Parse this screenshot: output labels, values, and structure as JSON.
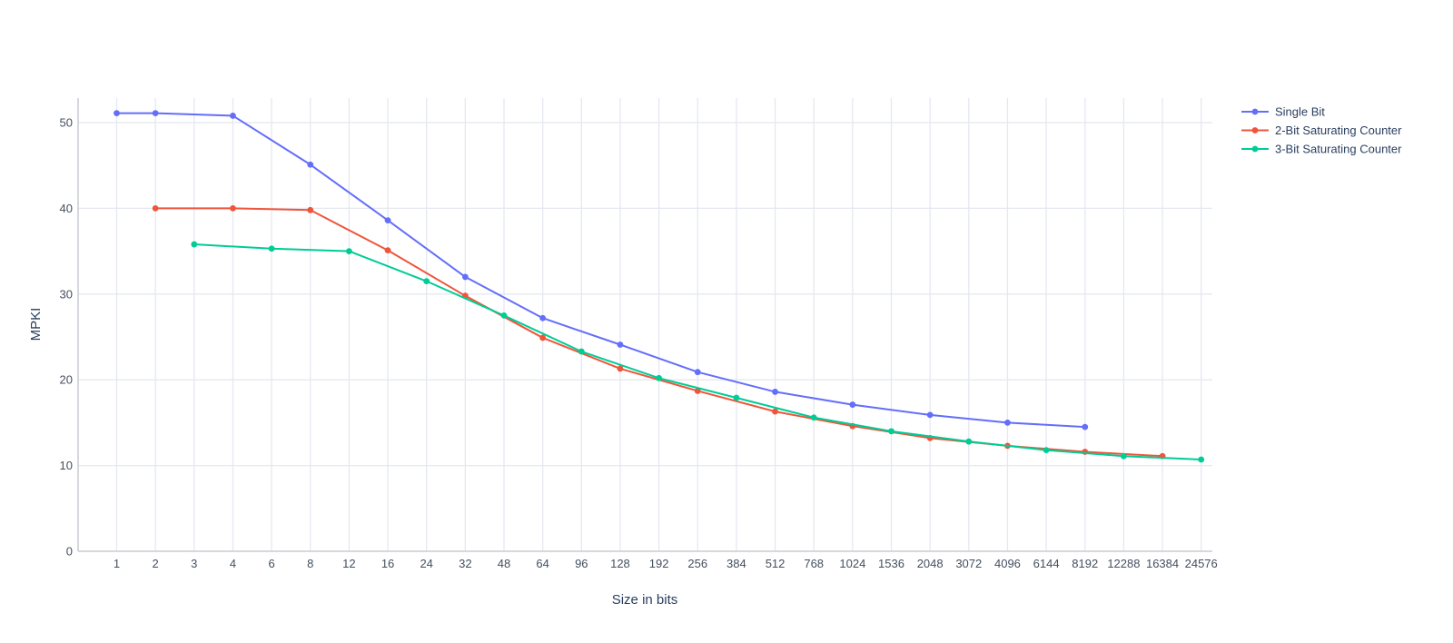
{
  "chart_data": {
    "type": "line",
    "title": "",
    "xlabel": "Size in bits",
    "ylabel": "MPKI",
    "x_axis_type": "category",
    "categories": [
      "1",
      "2",
      "3",
      "4",
      "6",
      "8",
      "12",
      "16",
      "24",
      "32",
      "48",
      "64",
      "96",
      "128",
      "192",
      "256",
      "384",
      "512",
      "768",
      "1024",
      "1536",
      "2048",
      "3072",
      "4096",
      "6144",
      "8192",
      "12288",
      "16384",
      "24576"
    ],
    "y_ticks": [
      0,
      10,
      20,
      30,
      40,
      50
    ],
    "ylim": [
      0,
      53
    ],
    "grid": true,
    "legend_position": "top-right",
    "series": [
      {
        "name": "Single Bit",
        "color": "#636efa",
        "points": [
          {
            "x": "1",
            "y": 51.1
          },
          {
            "x": "2",
            "y": 51.1
          },
          {
            "x": "4",
            "y": 50.8
          },
          {
            "x": "8",
            "y": 45.1
          },
          {
            "x": "16",
            "y": 38.6
          },
          {
            "x": "32",
            "y": 32.0
          },
          {
            "x": "64",
            "y": 27.2
          },
          {
            "x": "128",
            "y": 24.1
          },
          {
            "x": "256",
            "y": 20.9
          },
          {
            "x": "512",
            "y": 18.6
          },
          {
            "x": "1024",
            "y": 17.1
          },
          {
            "x": "2048",
            "y": 15.9
          },
          {
            "x": "4096",
            "y": 15.0
          },
          {
            "x": "8192",
            "y": 14.5
          }
        ]
      },
      {
        "name": "2-Bit Saturating Counter",
        "color": "#ef553b",
        "points": [
          {
            "x": "2",
            "y": 40.0
          },
          {
            "x": "4",
            "y": 40.0
          },
          {
            "x": "8",
            "y": 39.8
          },
          {
            "x": "16",
            "y": 35.1
          },
          {
            "x": "32",
            "y": 29.8
          },
          {
            "x": "64",
            "y": 24.9
          },
          {
            "x": "128",
            "y": 21.3
          },
          {
            "x": "256",
            "y": 18.7
          },
          {
            "x": "512",
            "y": 16.3
          },
          {
            "x": "1024",
            "y": 14.6
          },
          {
            "x": "2048",
            "y": 13.2
          },
          {
            "x": "4096",
            "y": 12.3
          },
          {
            "x": "8192",
            "y": 11.6
          },
          {
            "x": "16384",
            "y": 11.1
          }
        ]
      },
      {
        "name": "3-Bit Saturating Counter",
        "color": "#00cc96",
        "points": [
          {
            "x": "3",
            "y": 35.8
          },
          {
            "x": "6",
            "y": 35.3
          },
          {
            "x": "12",
            "y": 35.0
          },
          {
            "x": "24",
            "y": 31.5
          },
          {
            "x": "48",
            "y": 27.5
          },
          {
            "x": "96",
            "y": 23.3
          },
          {
            "x": "192",
            "y": 20.2
          },
          {
            "x": "384",
            "y": 17.9
          },
          {
            "x": "768",
            "y": 15.6
          },
          {
            "x": "1536",
            "y": 14.0
          },
          {
            "x": "3072",
            "y": 12.8
          },
          {
            "x": "6144",
            "y": 11.8
          },
          {
            "x": "12288",
            "y": 11.1
          },
          {
            "x": "24576",
            "y": 10.7
          }
        ]
      }
    ]
  }
}
